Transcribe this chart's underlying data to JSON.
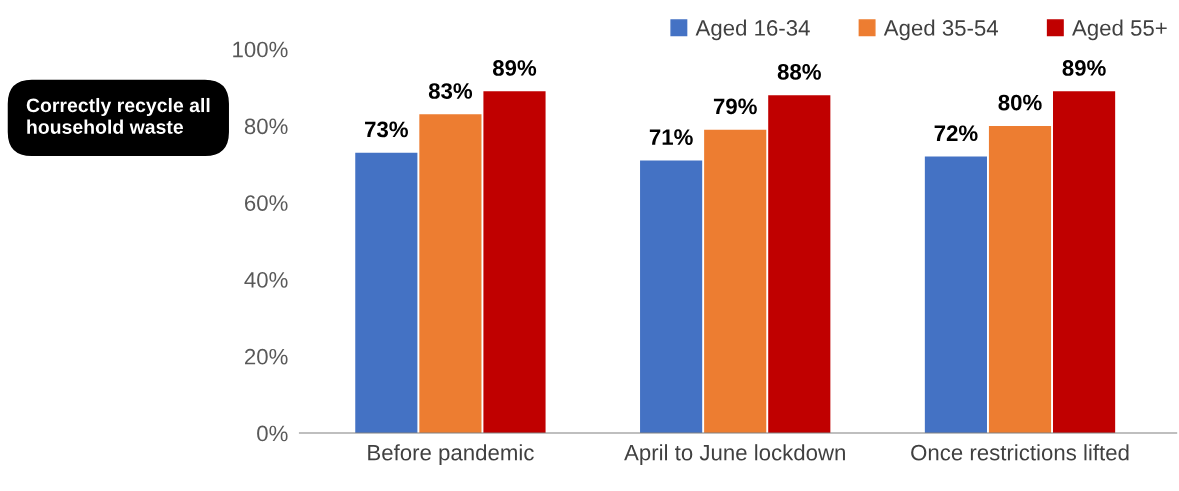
{
  "chart_data": {
    "type": "bar",
    "title": "Correctly recycle all household waste",
    "categories": [
      "Before pandemic",
      "April to June lockdown",
      "Once restrictions lifted"
    ],
    "series": [
      {
        "name": "Aged 16-34",
        "color": "#4472c4",
        "values": [
          73,
          71,
          72
        ],
        "value_labels": [
          "73%",
          "71%",
          "72%"
        ]
      },
      {
        "name": "Aged 35-54",
        "color": "#ed7d31",
        "values": [
          83,
          79,
          80
        ],
        "value_labels": [
          "83%",
          "79%",
          "80%"
        ]
      },
      {
        "name": "Aged 55+",
        "color": "#c00000",
        "values": [
          89,
          88,
          89
        ],
        "value_labels": [
          "89%",
          "88%",
          "89%"
        ]
      }
    ],
    "ylim": [
      0,
      100
    ],
    "yticks": [
      {
        "value": 0,
        "label": "0%"
      },
      {
        "value": 20,
        "label": "20%"
      },
      {
        "value": 40,
        "label": "40%"
      },
      {
        "value": 60,
        "label": "60%"
      },
      {
        "value": 80,
        "label": "80%"
      },
      {
        "value": 100,
        "label": "100%"
      }
    ],
    "grid": false,
    "legend": "top right"
  }
}
